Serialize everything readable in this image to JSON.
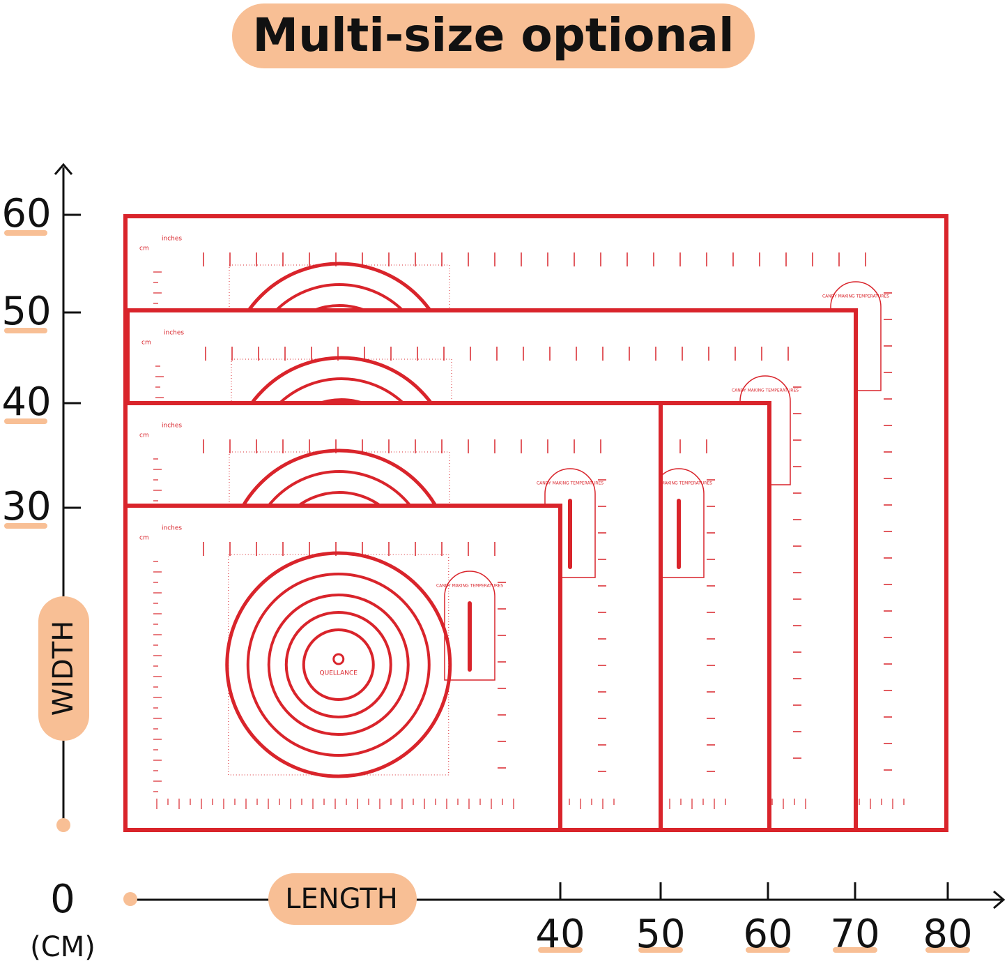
{
  "title": "Multi-size optional",
  "y_axis": {
    "label": "WIDTH",
    "ticks": [
      "60",
      "50",
      "40",
      "30"
    ]
  },
  "x_axis": {
    "label": "LENGTH",
    "origin": "0",
    "unit": "(CM)",
    "ticks": [
      "40",
      "50",
      "60",
      "70",
      "80"
    ]
  },
  "mat": {
    "brand": "QUELLANCE",
    "chart_title": "CANDY MAKING TEMPERATURES",
    "inch_label": "inches",
    "cm_label": "cm"
  }
}
